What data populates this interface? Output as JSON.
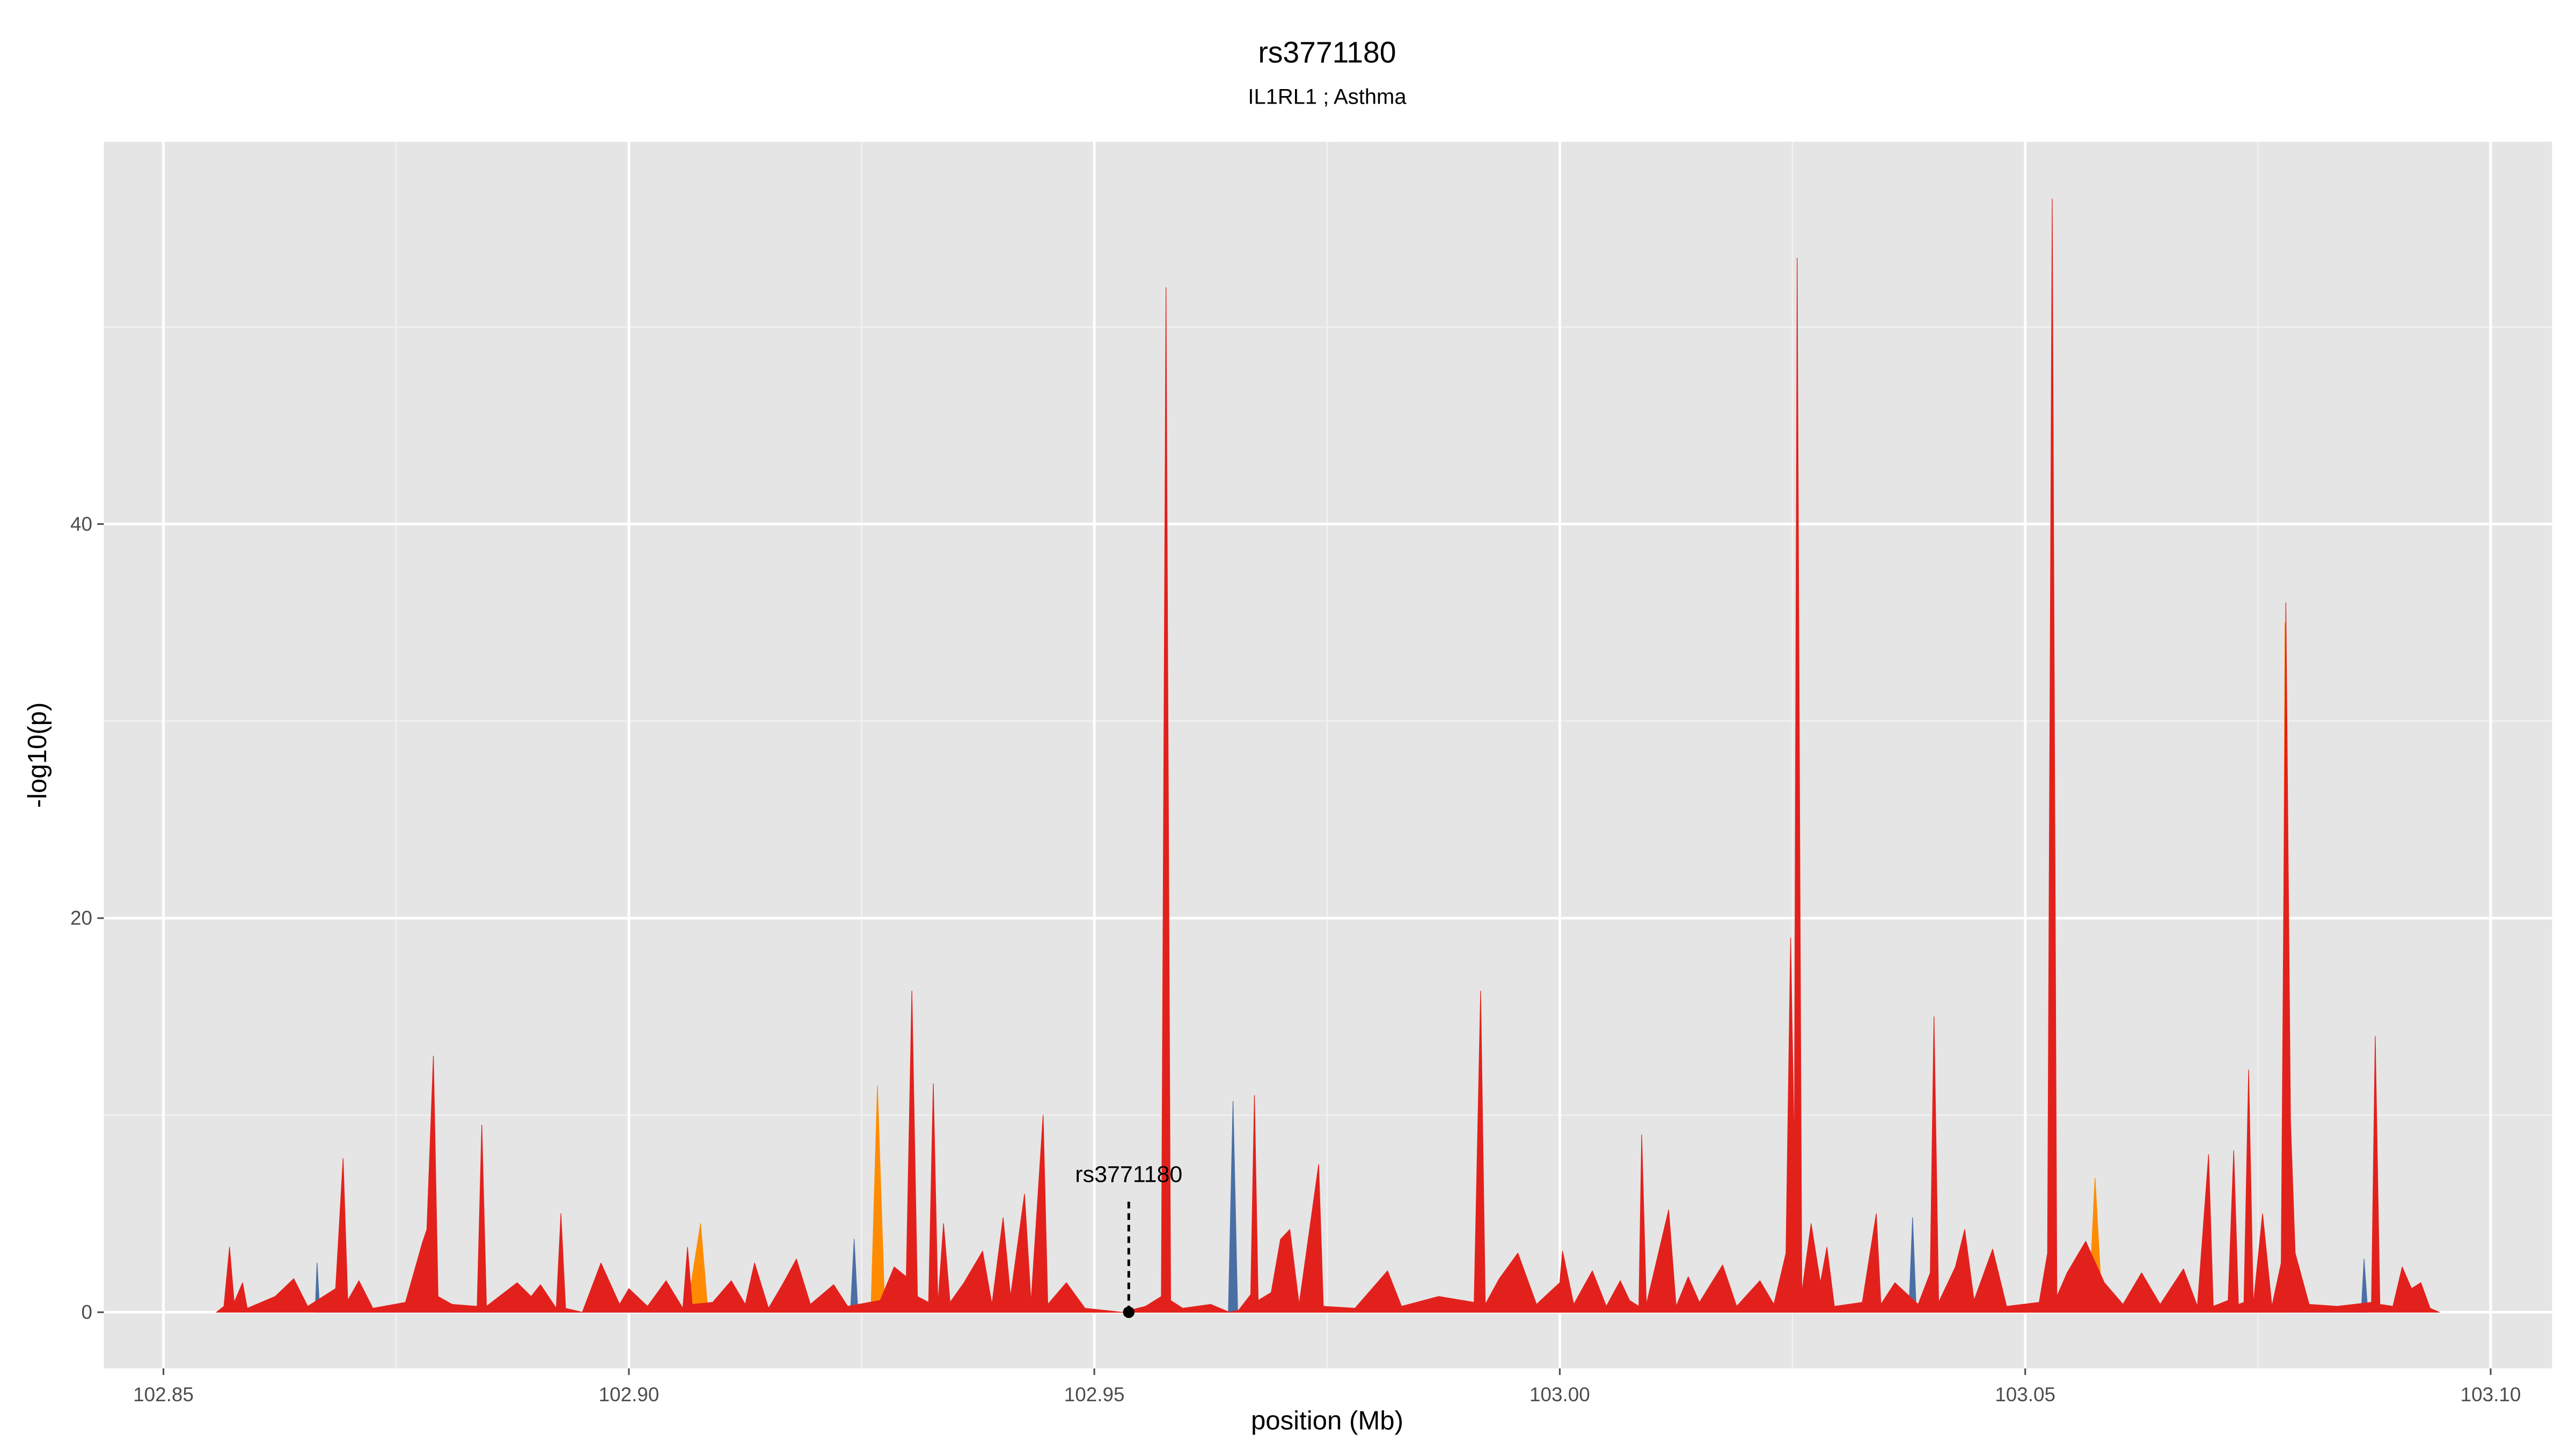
{
  "chart_data": {
    "type": "area",
    "title": "rs3771180",
    "subtitle": "IL1RL1 ; Asthma",
    "xlabel": "position (Mb)",
    "ylabel": "-log10(p)",
    "xlim": [
      102.8436,
      103.1066
    ],
    "ylim": [
      -2.85,
      59.4
    ],
    "xticks": [
      102.85,
      {
        "value": 102.9,
        "label": "102.90"
      },
      102.95,
      {
        "value": 103.0,
        "label": "103.00"
      },
      103.05,
      {
        "value": 103.1,
        "label": "103.10"
      }
    ],
    "yticks": [
      0,
      20,
      40
    ],
    "x_minor_grid": [
      102.875,
      102.925,
      102.975,
      103.025,
      103.075
    ],
    "y_minor_grid": [
      10,
      30,
      50
    ],
    "grid": true,
    "annotation": {
      "label": "rs3771180",
      "x": 102.9537,
      "y": 0
    },
    "series": [
      {
        "color": "#4a6fa5",
        "x": [
          102.8663,
          102.8665,
          102.8668,
          102.9238,
          102.9242,
          102.9246,
          102.9644,
          102.9649,
          102.9654,
          103.0375,
          103.0379,
          103.0383,
          103.0861,
          103.0864,
          103.0868
        ],
        "values": [
          0,
          2.5,
          0,
          0,
          3.7,
          0,
          0,
          10.7,
          0,
          0,
          4.8,
          0,
          0,
          2.7,
          0
        ]
      },
      {
        "color": "#ff8c00",
        "x": [
          102.9062,
          102.9077,
          102.9085,
          102.926,
          102.9267,
          102.9275,
          102.9695,
          102.9705,
          102.9715,
          103.0568,
          103.0575,
          103.0583,
          103.0776,
          103.0779,
          103.0784
        ],
        "values": [
          0,
          4.5,
          0,
          0,
          11.5,
          0,
          0,
          3.2,
          0,
          0,
          6.8,
          0,
          0,
          35,
          0
        ]
      },
      {
        "color": "#e3211c",
        "x": [
          102.8557,
          102.8565,
          102.8571,
          102.8576,
          102.8585,
          102.859,
          102.862,
          102.864,
          102.8655,
          102.8685,
          102.8693,
          102.8698,
          102.871,
          102.8725,
          102.876,
          102.8778,
          102.8783,
          102.879,
          102.8795,
          102.881,
          102.8837,
          102.8842,
          102.8847,
          102.888,
          102.8895,
          102.8905,
          102.8922,
          102.8927,
          102.8932,
          102.895,
          102.897,
          102.899,
          102.9,
          102.902,
          102.904,
          102.9058,
          102.9063,
          102.9068,
          102.909,
          102.911,
          102.9125,
          102.9135,
          102.915,
          102.9165,
          102.918,
          102.9195,
          102.922,
          102.9235,
          102.927,
          102.9285,
          102.9298,
          102.9304,
          102.931,
          102.9322,
          102.9327,
          102.9332,
          102.9338,
          102.9345,
          102.936,
          102.938,
          102.939,
          102.9402,
          102.941,
          102.9425,
          102.9432,
          102.9445,
          102.945,
          102.947,
          102.949,
          102.953,
          102.9555,
          102.9572,
          102.9577,
          102.9582,
          102.9595,
          102.9625,
          102.9645,
          102.9655,
          102.9668,
          102.9672,
          102.9676,
          102.969,
          102.97,
          102.971,
          102.972,
          102.9741,
          102.9746,
          102.978,
          102.9815,
          102.983,
          102.987,
          102.9908,
          102.9915,
          102.992,
          102.9935,
          102.9955,
          102.9975,
          103.0,
          103.0003,
          103.0015,
          103.0035,
          103.005,
          103.0065,
          103.0075,
          103.0085,
          103.0088,
          103.0093,
          103.0117,
          103.0125,
          103.0138,
          103.015,
          103.0175,
          103.019,
          103.0215,
          103.023,
          103.0243,
          103.0248,
          103.0252,
          103.0255,
          103.026,
          103.027,
          103.028,
          103.0287,
          103.0295,
          103.0325,
          103.034,
          103.0345,
          103.036,
          103.0385,
          103.0398,
          103.0402,
          103.0407,
          103.0425,
          103.0435,
          103.0445,
          103.0465,
          103.048,
          103.0515,
          103.0524,
          103.0529,
          103.0534,
          103.0545,
          103.0565,
          103.0585,
          103.0605,
          103.0625,
          103.0645,
          103.067,
          103.0685,
          103.0697,
          103.0702,
          103.0718,
          103.0724,
          103.0729,
          103.0735,
          103.074,
          103.0745,
          103.0755,
          103.0765,
          103.0775,
          103.078,
          103.0785,
          103.079,
          103.0805,
          103.0835,
          103.0872,
          103.0876,
          103.0881,
          103.0895,
          103.0905,
          103.0915,
          103.0925,
          103.0935,
          103.0945
        ],
        "values": [
          0,
          0.3,
          3.3,
          0.5,
          1.5,
          0.2,
          0.8,
          1.7,
          0.3,
          1.2,
          7.8,
          0.6,
          1.6,
          0.2,
          0.5,
          3.5,
          4.2,
          13,
          0.8,
          0.4,
          0.3,
          9.5,
          0.3,
          1.5,
          0.8,
          1.4,
          0.2,
          5,
          0.2,
          0,
          2.5,
          0.4,
          1.2,
          0.3,
          1.6,
          0.2,
          3.3,
          0.4,
          0.5,
          1.6,
          0.4,
          2.5,
          0.2,
          1.4,
          2.7,
          0.4,
          1.4,
          0.3,
          0.6,
          2.3,
          1.8,
          16.3,
          0.8,
          0.5,
          11.6,
          0.4,
          4.5,
          0.5,
          1.5,
          3.1,
          0.4,
          4.8,
          0.8,
          6,
          0.5,
          10,
          0.4,
          1.5,
          0.2,
          0,
          0.3,
          0.8,
          52,
          0.6,
          0.2,
          0.4,
          0,
          0.1,
          0.9,
          11,
          0.6,
          1,
          3.7,
          4.2,
          0.4,
          7.5,
          0.3,
          0.2,
          2.1,
          0.3,
          0.8,
          0.5,
          16.3,
          0.4,
          1.7,
          3,
          0.4,
          1.5,
          3.1,
          0.4,
          2.1,
          0.3,
          1.6,
          0.6,
          0.3,
          9,
          0.4,
          5.2,
          0.3,
          1.8,
          0.5,
          2.4,
          0.3,
          1.6,
          0.4,
          3,
          19,
          8,
          53.5,
          1,
          4.5,
          1.5,
          3.3,
          0.3,
          0.5,
          5,
          0.4,
          1.5,
          0.4,
          2,
          15,
          0.5,
          2.3,
          4.2,
          0.6,
          3.2,
          0.3,
          0.5,
          3,
          56.5,
          0.8,
          2,
          3.6,
          1.5,
          0.4,
          2,
          0.4,
          2.2,
          0.3,
          8,
          0.3,
          0.6,
          8.2,
          0.4,
          0.5,
          12.3,
          0.4,
          5,
          0.3,
          2.5,
          36,
          9.7,
          3,
          0.4,
          0.3,
          0.5,
          14,
          0.4,
          0.3,
          2.3,
          1.2,
          1.5,
          0.2,
          0
        ]
      }
    ]
  }
}
